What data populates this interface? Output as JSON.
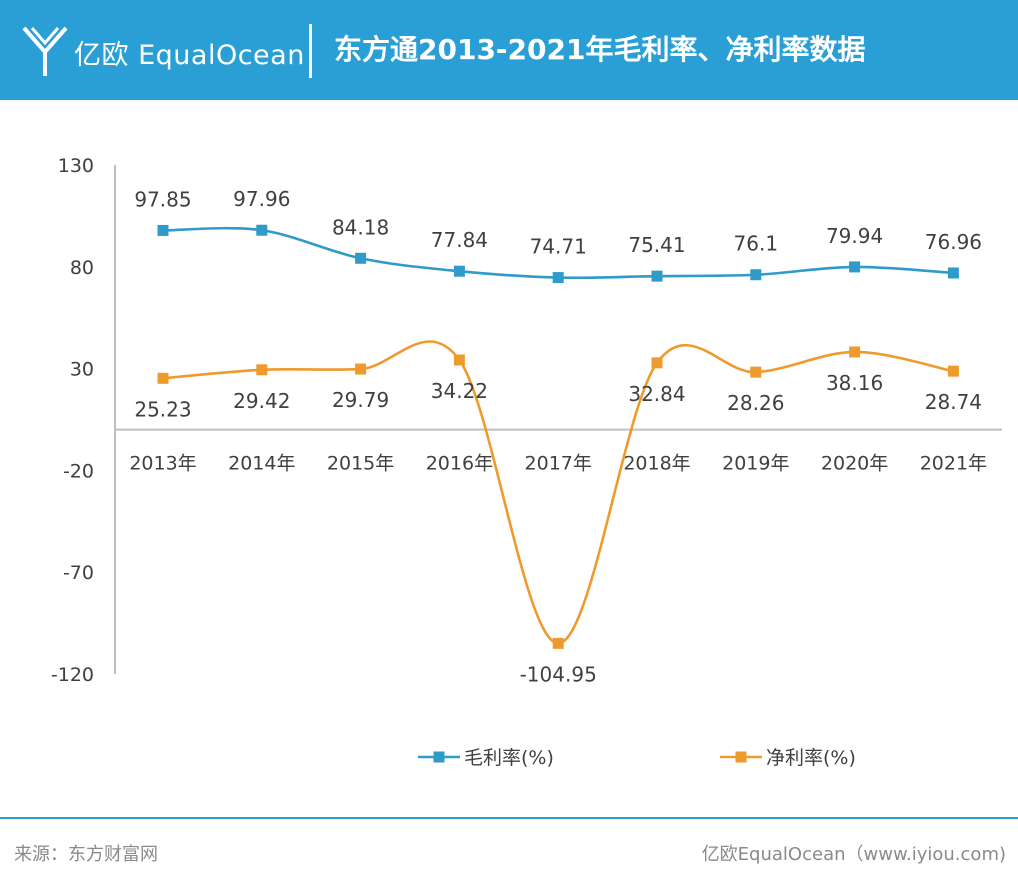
{
  "header": {
    "brand": "亿欧 EqualOcean",
    "title": "东方通2013-2021年毛利率、净利率数据"
  },
  "footer": {
    "source": "来源：东方财富网",
    "site": "亿欧EqualOcean（www.iyiou.com)"
  },
  "colors": {
    "header_bg": "#2a9fd6",
    "gross_margin": "#2e9bc9",
    "net_margin": "#ef9a2d"
  },
  "chart_data": {
    "type": "line",
    "title": "",
    "xlabel": "",
    "ylabel": "",
    "categories": [
      "2013年",
      "2014年",
      "2015年",
      "2016年",
      "2017年",
      "2018年",
      "2019年",
      "2020年",
      "2021年"
    ],
    "ylim": [
      -120,
      130
    ],
    "yticks": [
      130,
      80,
      30,
      -20,
      -70,
      -120
    ],
    "grid": false,
    "legend_position": "bottom",
    "series": [
      {
        "name": "毛利率(%)",
        "values": [
          97.85,
          97.96,
          84.18,
          77.84,
          74.71,
          75.41,
          76.1,
          79.94,
          76.96
        ],
        "labels": [
          "97.85",
          "97.96",
          "84.18",
          "77.84",
          "74.71",
          "75.41",
          "76.1",
          "79.94",
          "76.96"
        ],
        "color": "#2e9bc9",
        "marker": "square",
        "smooth": true
      },
      {
        "name": "净利率(%)",
        "values": [
          25.23,
          29.42,
          29.79,
          34.22,
          -104.95,
          32.84,
          28.26,
          38.16,
          28.74
        ],
        "labels": [
          "25.23",
          "29.42",
          "29.79",
          "34.22",
          "-104.95",
          "32.84",
          "28.26",
          "38.16",
          "28.74"
        ],
        "color": "#ef9a2d",
        "marker": "square",
        "smooth": true
      }
    ]
  }
}
